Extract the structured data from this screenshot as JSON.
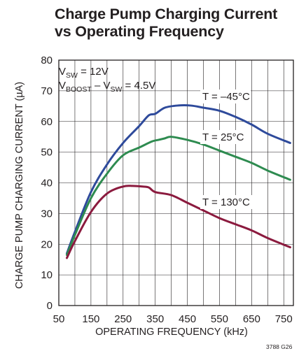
{
  "chart_data": {
    "type": "line",
    "title": [
      "Charge Pump Charging Current",
      "vs Operating Frequency"
    ],
    "xlabel": "OPERATING FREQUENCY (kHz)",
    "ylabel": "CHARGE PUMP CHARGING CURRENT (µA)",
    "xlim": [
      50,
      780
    ],
    "ylim": [
      0,
      80
    ],
    "xticks": [
      50,
      150,
      250,
      350,
      450,
      550,
      650,
      750
    ],
    "yticks": [
      0,
      10,
      20,
      30,
      40,
      50,
      60,
      70,
      80
    ],
    "grid": true,
    "series": [
      {
        "name": "T = −45°C",
        "color": "#2e4a9b",
        "x": [
          75,
          100,
          150,
          200,
          250,
          300,
          330,
          350,
          380,
          420,
          460,
          500,
          550,
          600,
          650,
          700,
          770
        ],
        "y": [
          17,
          24,
          37,
          46,
          53,
          58.5,
          62,
          62.5,
          64.5,
          65.2,
          65.2,
          64.5,
          63.5,
          61.5,
          59,
          56,
          53
        ]
      },
      {
        "name": "T = 25°C",
        "color": "#2e8b50",
        "x": [
          75,
          100,
          150,
          200,
          250,
          300,
          340,
          360,
          380,
          400,
          450,
          500,
          550,
          600,
          650,
          700,
          770
        ],
        "y": [
          16.5,
          23,
          35,
          43,
          49,
          51.5,
          53.5,
          54,
          54.5,
          55,
          54,
          52.5,
          50.5,
          48.5,
          46.5,
          44,
          41
        ]
      },
      {
        "name": "T = 130°C",
        "color": "#8b1a3e",
        "x": [
          75,
          100,
          150,
          200,
          250,
          280,
          310,
          330,
          350,
          400,
          450,
          500,
          550,
          600,
          650,
          700,
          770
        ],
        "y": [
          15.5,
          21,
          30.5,
          36.5,
          38.8,
          39,
          38.8,
          38.5,
          37,
          36,
          33.5,
          31,
          28.5,
          26.5,
          24.5,
          22,
          19
        ]
      }
    ],
    "annotations": {
      "vsw": {
        "main": "V",
        "sub": "SW",
        "rest": " = 12V"
      },
      "vboost": {
        "main1": "V",
        "sub1": "BOOST",
        "mid": " – V",
        "sub2": "SW",
        "rest": " = 4.5V"
      },
      "label_t45": "T = –45°C",
      "label_t25": "T = 25°C",
      "label_t130": "T = 130°C"
    },
    "figure_id": "3788 G26"
  }
}
